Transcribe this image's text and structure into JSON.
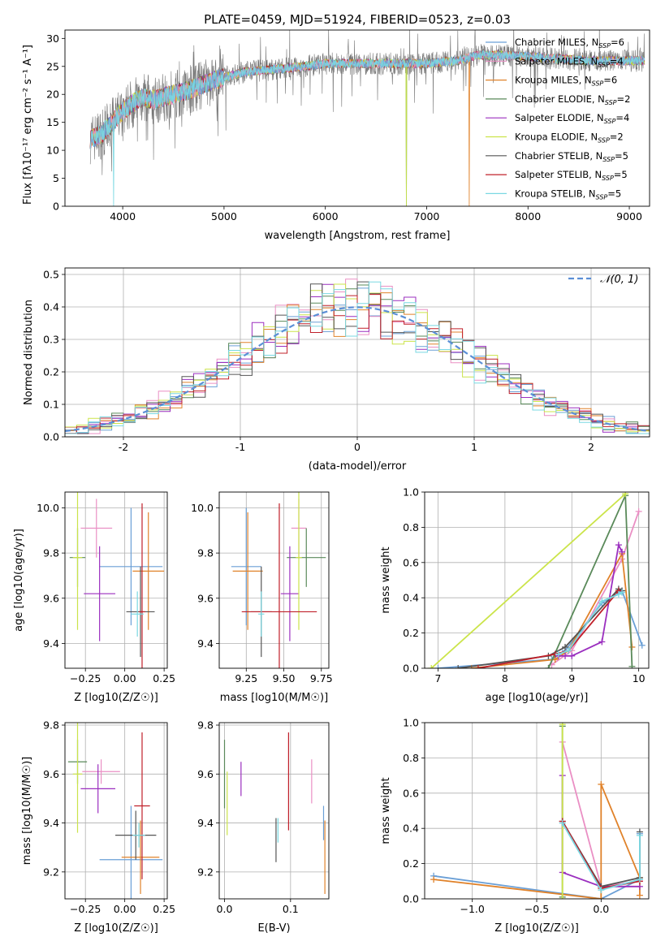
{
  "figure": {
    "title": "PLATE=0459, MJD=51924, FIBERID=0523, z=0.03"
  },
  "colors": {
    "Chabrier MILES": "#6a9fd6",
    "Salpeter MILES": "#ea8fc4",
    "Kroupa MILES": "#e0822a",
    "Chabrier ELODIE": "#5a8a5a",
    "Salpeter ELODIE": "#9b2fbf",
    "Kroupa ELODIE": "#cbe44a",
    "Chabrier STELIB": "#555555",
    "Salpeter STELIB": "#c0202a",
    "Kroupa STELIB": "#7ad8e2"
  },
  "chart_data": [
    {
      "id": "spectrum",
      "type": "line",
      "title": "PLATE=0459, MJD=51924, FIBERID=0523, z=0.03",
      "xlabel": "wavelength [Angstrom, rest frame]",
      "ylabel": "Flux [fλ10⁻¹⁷ erg cm⁻² s⁻¹ A⁻¹]",
      "xlim": [
        3430,
        9200
      ],
      "ylim": [
        0,
        31.5
      ],
      "xticks": [
        4000,
        5000,
        6000,
        7000,
        8000,
        9000
      ],
      "yticks": [
        0,
        5,
        10,
        15,
        20,
        25,
        30
      ],
      "grid": false,
      "legend_position": "top-right",
      "legend": [
        {
          "key": "Chabrier MILES",
          "prefix": "Chabrier MILES, N",
          "sub": "SSP",
          "suffix": "=6"
        },
        {
          "key": "Salpeter MILES",
          "prefix": "Salpeter MILES, N",
          "sub": "SSP",
          "suffix": "=4"
        },
        {
          "key": "Kroupa MILES",
          "prefix": "Kroupa MILES, N",
          "sub": "SSP",
          "suffix": "=6"
        },
        {
          "key": "Chabrier ELODIE",
          "prefix": "Chabrier ELODIE, N",
          "sub": "SSP",
          "suffix": "=2"
        },
        {
          "key": "Salpeter ELODIE",
          "prefix": "Salpeter ELODIE, N",
          "sub": "SSP",
          "suffix": "=4"
        },
        {
          "key": "Kroupa ELODIE",
          "prefix": "Kroupa ELODIE, N",
          "sub": "SSP",
          "suffix": "=2"
        },
        {
          "key": "Chabrier STELIB",
          "prefix": "Chabrier STELIB, N",
          "sub": "SSP",
          "suffix": "=5"
        },
        {
          "key": "Salpeter STELIB",
          "prefix": "Salpeter STELIB, N",
          "sub": "SSP",
          "suffix": "=5"
        },
        {
          "key": "Kroupa STELIB",
          "prefix": "Kroupa STELIB, N",
          "sub": "SSP",
          "suffix": "=5"
        }
      ],
      "continuum": [
        [
          3680,
          12
        ],
        [
          3800,
          13
        ],
        [
          3900,
          15
        ],
        [
          4000,
          17
        ],
        [
          4100,
          18.5
        ],
        [
          4200,
          19.5
        ],
        [
          4300,
          19
        ],
        [
          4500,
          20
        ],
        [
          4700,
          21
        ],
        [
          4900,
          22.5
        ],
        [
          5000,
          23
        ],
        [
          5200,
          24
        ],
        [
          5500,
          24.5
        ],
        [
          5800,
          25
        ],
        [
          6000,
          25.5
        ],
        [
          6300,
          25.5
        ],
        [
          6600,
          25.5
        ],
        [
          7000,
          25.5
        ],
        [
          7300,
          26
        ],
        [
          7500,
          27
        ],
        [
          7800,
          27
        ],
        [
          8200,
          26.5
        ],
        [
          8600,
          26
        ],
        [
          9000,
          26
        ],
        [
          9150,
          26
        ]
      ],
      "spectrum_extent": [
        3680,
        9150
      ],
      "drop_features": [
        [
          6800,
          0
        ],
        [
          7420,
          0
        ],
        [
          3910,
          0
        ]
      ]
    },
    {
      "id": "residuals",
      "type": "bar",
      "xlabel": "(data-model)/error",
      "ylabel": "Normed distribution",
      "xlim": [
        -2.5,
        2.5
      ],
      "ylim": [
        0,
        0.52
      ],
      "xticks": [
        -2,
        -1,
        0,
        1,
        2
      ],
      "yticks": [
        0.0,
        0.1,
        0.2,
        0.3,
        0.4,
        0.5
      ],
      "grid": true,
      "bin_width": 0.1,
      "reference_curve": {
        "name": "N(0,1)",
        "mu": 0,
        "sigma": 1
      },
      "legend_position": "top-right"
    },
    {
      "id": "age_vs_Z",
      "type": "scatter",
      "xlabel": "Z [log10(Z/Z☉)]",
      "ylabel": "age [log10(age/yr)]",
      "xlim": [
        -0.38,
        0.27
      ],
      "ylim": [
        9.29,
        10.07
      ],
      "xticks": [
        -0.25,
        0.0,
        0.25
      ],
      "xtick_labels": [
        "−0.25",
        "0.00",
        "0.25"
      ],
      "yticks": [
        9.4,
        9.6,
        9.8,
        10.0
      ],
      "grid": true,
      "points": [
        {
          "key": "Chabrier MILES",
          "x": 0.04,
          "y": 9.74,
          "xerr": 0.2,
          "yerr": 0.26
        },
        {
          "key": "Salpeter MILES",
          "x": -0.18,
          "y": 9.91,
          "xerr": 0.1,
          "yerr": 0.13
        },
        {
          "key": "Kroupa MILES",
          "x": 0.15,
          "y": 9.72,
          "xerr": 0.1,
          "yerr": 0.26
        },
        {
          "key": "Chabrier ELODIE",
          "x": -0.3,
          "y": 9.78,
          "xerr": 0.05,
          "yerr": 0.13
        },
        {
          "key": "Salpeter ELODIE",
          "x": -0.16,
          "y": 9.62,
          "xerr": 0.1,
          "yerr": 0.21
        },
        {
          "key": "Kroupa ELODIE",
          "x": -0.3,
          "y": 9.78,
          "xerr": 0.03,
          "yerr": 0.32
        },
        {
          "key": "Chabrier STELIB",
          "x": 0.1,
          "y": 9.54,
          "xerr": 0.09,
          "yerr": 0.2
        },
        {
          "key": "Salpeter STELIB",
          "x": 0.11,
          "y": 9.54,
          "xerr": 0.02,
          "yerr": 0.48
        },
        {
          "key": "Kroupa STELIB",
          "x": 0.08,
          "y": 9.53,
          "xerr": 0.04,
          "yerr": 0.1
        }
      ]
    },
    {
      "id": "age_vs_mass",
      "type": "scatter",
      "xlabel": "mass [log10(M/M☉)]",
      "ylabel": "",
      "xlim": [
        9.07,
        9.8
      ],
      "ylim": [
        9.29,
        10.07
      ],
      "xticks": [
        9.25,
        9.5,
        9.75
      ],
      "xtick_labels": [
        "9.25",
        "9.50",
        "9.75"
      ],
      "yticks": [
        9.4,
        9.6,
        9.8,
        10.0
      ],
      "grid": true,
      "points": [
        {
          "key": "Chabrier MILES",
          "x": 9.25,
          "y": 9.74,
          "xerr": 0.1,
          "yerr": 0.26
        },
        {
          "key": "Salpeter MILES",
          "x": 9.6,
          "y": 9.91,
          "xerr": 0.05,
          "yerr": 0.13
        },
        {
          "key": "Kroupa MILES",
          "x": 9.26,
          "y": 9.72,
          "xerr": 0.1,
          "yerr": 0.26
        },
        {
          "key": "Chabrier ELODIE",
          "x": 9.65,
          "y": 9.78,
          "xerr": 0.13,
          "yerr": 0.13
        },
        {
          "key": "Salpeter ELODIE",
          "x": 9.54,
          "y": 9.62,
          "xerr": 0.06,
          "yerr": 0.21
        },
        {
          "key": "Kroupa ELODIE",
          "x": 9.6,
          "y": 9.78,
          "xerr": 0.02,
          "yerr": 0.32
        },
        {
          "key": "Chabrier STELIB",
          "x": 9.35,
          "y": 9.54,
          "xerr": 0.07,
          "yerr": 0.2
        },
        {
          "key": "Salpeter STELIB",
          "x": 9.47,
          "y": 9.54,
          "xerr": 0.25,
          "yerr": 0.48
        },
        {
          "key": "Kroupa STELIB",
          "x": 9.35,
          "y": 9.53,
          "xerr": 0.02,
          "yerr": 0.1
        }
      ]
    },
    {
      "id": "massweight_vs_age",
      "type": "line",
      "xlabel": "age [log10(age/yr)]",
      "ylabel": "mass weight",
      "xlim": [
        6.8,
        10.15
      ],
      "ylim": [
        0,
        1.0
      ],
      "xticks": [
        7,
        8,
        9,
        10
      ],
      "yticks": [
        0.0,
        0.2,
        0.4,
        0.6,
        0.8,
        1.0
      ],
      "grid": true,
      "series": [
        {
          "key": "Chabrier MILES",
          "x": [
            7.0,
            8.7,
            8.9,
            9.45,
            9.75,
            10.05
          ],
          "y": [
            0.0,
            0.05,
            0.1,
            0.37,
            0.44,
            0.13
          ]
        },
        {
          "key": "Salpeter MILES",
          "x": [
            8.7,
            9.0,
            9.75,
            10.0
          ],
          "y": [
            0.02,
            0.1,
            0.62,
            0.89
          ]
        },
        {
          "key": "Kroupa MILES",
          "x": [
            7.5,
            8.75,
            8.95,
            9.75,
            9.9
          ],
          "y": [
            0.0,
            0.05,
            0.1,
            0.65,
            0.12
          ]
        },
        {
          "key": "Chabrier ELODIE",
          "x": [
            8.65,
            9.8,
            9.9
          ],
          "y": [
            0.0,
            0.98,
            0.01
          ]
        },
        {
          "key": "Salpeter ELODIE",
          "x": [
            8.8,
            8.9,
            9.0,
            9.45,
            9.7,
            9.75
          ],
          "y": [
            0.07,
            0.07,
            0.07,
            0.15,
            0.7,
            0.66
          ]
        },
        {
          "key": "Kroupa ELODIE",
          "x": [
            6.9,
            9.8
          ],
          "y": [
            0.0,
            0.99
          ]
        },
        {
          "key": "Chabrier STELIB",
          "x": [
            7.3,
            8.65,
            8.9,
            9.7,
            9.75
          ],
          "y": [
            0.0,
            0.07,
            0.12,
            0.45,
            0.44
          ]
        },
        {
          "key": "Salpeter STELIB",
          "x": [
            7.6,
            8.75,
            8.95,
            9.7
          ],
          "y": [
            0.0,
            0.08,
            0.1,
            0.44
          ]
        },
        {
          "key": "Kroupa STELIB",
          "x": [
            8.8,
            8.95,
            9.45,
            9.7,
            9.75
          ],
          "y": [
            0.08,
            0.1,
            0.38,
            0.42,
            0.43
          ]
        }
      ]
    },
    {
      "id": "mass_vs_Z",
      "type": "scatter",
      "xlabel": "Z [log10(Z/Z☉)]",
      "ylabel": "mass [log10(M/M☉)]",
      "xlim": [
        -0.38,
        0.27
      ],
      "ylim": [
        9.09,
        9.81
      ],
      "xticks": [
        -0.25,
        0.0,
        0.25
      ],
      "xtick_labels": [
        "−0.25",
        "0.00",
        "0.25"
      ],
      "yticks": [
        9.2,
        9.4,
        9.6,
        9.8
      ],
      "grid": true,
      "points": [
        {
          "key": "Chabrier MILES",
          "x": 0.04,
          "y": 9.25,
          "xerr": 0.2,
          "yerr": 0.22
        },
        {
          "key": "Salpeter MILES",
          "x": -0.15,
          "y": 9.61,
          "xerr": 0.12,
          "yerr": 0.05
        },
        {
          "key": "Kroupa MILES",
          "x": 0.1,
          "y": 9.26,
          "xerr": 0.12,
          "yerr": 0.15
        },
        {
          "key": "Chabrier ELODIE",
          "x": -0.3,
          "y": 9.65,
          "xerr": 0.06,
          "yerr": 0.09
        },
        {
          "key": "Salpeter ELODIE",
          "x": -0.17,
          "y": 9.54,
          "xerr": 0.11,
          "yerr": 0.1
        },
        {
          "key": "Kroupa ELODIE",
          "x": -0.3,
          "y": 9.6,
          "xerr": 0.03,
          "yerr": 0.24
        },
        {
          "key": "Chabrier STELIB",
          "x": 0.07,
          "y": 9.35,
          "xerr": 0.13,
          "yerr": 0.1
        },
        {
          "key": "Salpeter STELIB",
          "x": 0.11,
          "y": 9.47,
          "xerr": 0.05,
          "yerr": 0.3
        },
        {
          "key": "Kroupa STELIB",
          "x": 0.09,
          "y": 9.35,
          "xerr": 0.04,
          "yerr": 0.05
        }
      ]
    },
    {
      "id": "mass_vs_ebv",
      "type": "scatter",
      "xlabel": "E(B-V)",
      "ylabel": "",
      "xlim": [
        -0.008,
        0.158
      ],
      "ylim": [
        9.09,
        9.81
      ],
      "xticks": [
        0.0,
        0.1
      ],
      "xtick_labels": [
        "0.0",
        "0.1"
      ],
      "yticks": [
        9.2,
        9.4,
        9.6,
        9.8
      ],
      "grid": true,
      "points": [
        {
          "key": "Chabrier MILES",
          "x": 0.15,
          "y": 9.4,
          "xerr": 0,
          "yerr": 0.07
        },
        {
          "key": "Salpeter MILES",
          "x": 0.132,
          "y": 9.57,
          "xerr": 0,
          "yerr": 0.09
        },
        {
          "key": "Kroupa MILES",
          "x": 0.152,
          "y": 9.26,
          "xerr": 0,
          "yerr": 0.15
        },
        {
          "key": "Chabrier ELODIE",
          "x": 0.0,
          "y": 9.6,
          "xerr": 0,
          "yerr": 0.14
        },
        {
          "key": "Salpeter ELODIE",
          "x": 0.025,
          "y": 9.58,
          "xerr": 0,
          "yerr": 0.07
        },
        {
          "key": "Kroupa ELODIE",
          "x": 0.004,
          "y": 9.48,
          "xerr": 0,
          "yerr": 0.13
        },
        {
          "key": "Chabrier STELIB",
          "x": 0.078,
          "y": 9.33,
          "xerr": 0,
          "yerr": 0.09
        },
        {
          "key": "Salpeter STELIB",
          "x": 0.097,
          "y": 9.57,
          "xerr": 0,
          "yerr": 0.2
        },
        {
          "key": "Kroupa STELIB",
          "x": 0.081,
          "y": 9.37,
          "xerr": 0,
          "yerr": 0.05
        }
      ]
    },
    {
      "id": "massweight_vs_Z",
      "type": "line",
      "xlabel": "Z [log10(Z/Z☉)]",
      "ylabel": "mass weight",
      "xlim": [
        -1.37,
        0.37
      ],
      "ylim": [
        0,
        1.0
      ],
      "xticks": [
        -1.0,
        -0.5,
        0.0
      ],
      "xtick_labels": [
        "−1.0",
        "−0.5",
        "0.0"
      ],
      "yticks": [
        0.0,
        0.2,
        0.4,
        0.6,
        0.8,
        1.0
      ],
      "grid": true,
      "series": [
        {
          "key": "Chabrier MILES",
          "x": [
            -1.3,
            0.0,
            0.3,
            0.3
          ],
          "y": [
            0.13,
            0.0,
            0.11,
            0.37
          ]
        },
        {
          "key": "Salpeter MILES",
          "x": [
            -0.3,
            0.0,
            0.3
          ],
          "y": [
            0.89,
            0.07,
            0.1
          ]
        },
        {
          "key": "Kroupa MILES",
          "x": [
            -1.3,
            0.0,
            0.0,
            0.3,
            0.3
          ],
          "y": [
            0.11,
            0.0,
            0.65,
            0.12,
            0.02
          ]
        },
        {
          "key": "Chabrier ELODIE",
          "x": [
            -0.3,
            -0.3
          ],
          "y": [
            0.98,
            0.01
          ]
        },
        {
          "key": "Salpeter ELODIE",
          "x": [
            -0.3,
            -0.3,
            0.0,
            0.3
          ],
          "y": [
            0.7,
            0.15,
            0.07,
            0.07
          ]
        },
        {
          "key": "Kroupa ELODIE",
          "x": [
            -0.3,
            -0.3
          ],
          "y": [
            0.99,
            0.0
          ]
        },
        {
          "key": "Chabrier STELIB",
          "x": [
            -0.3,
            0.0,
            0.3,
            0.3
          ],
          "y": [
            0.44,
            0.07,
            0.12,
            0.38
          ]
        },
        {
          "key": "Salpeter STELIB",
          "x": [
            -0.3,
            0.0,
            0.3
          ],
          "y": [
            0.44,
            0.06,
            0.1
          ]
        },
        {
          "key": "Kroupa STELIB",
          "x": [
            -0.3,
            0.0,
            0.3,
            0.3
          ],
          "y": [
            0.43,
            0.05,
            0.11,
            0.36
          ]
        }
      ]
    }
  ]
}
